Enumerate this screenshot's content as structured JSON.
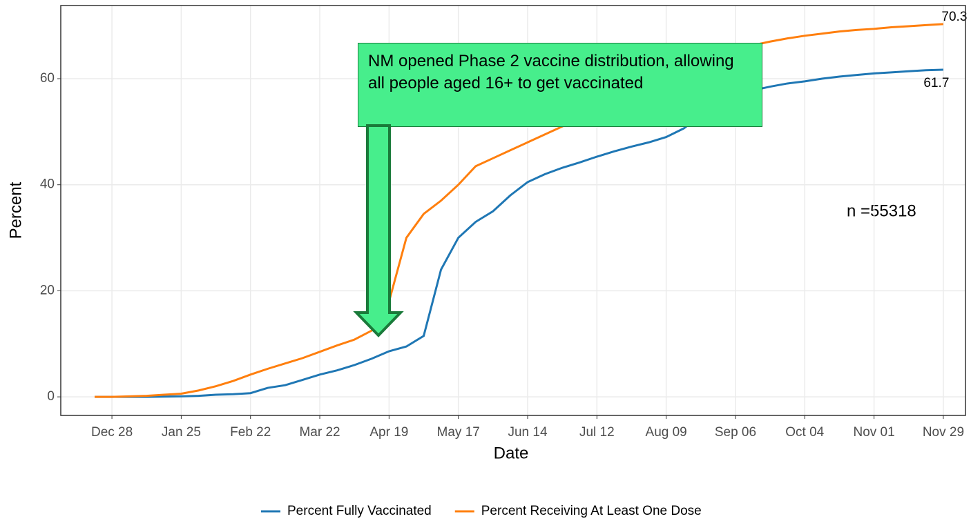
{
  "chart_data": {
    "type": "line",
    "x_label": "Date",
    "y_label": "Percent",
    "x": [
      null,
      "Dec 28",
      null,
      null,
      null,
      "Jan 25",
      null,
      null,
      null,
      "Feb 22",
      null,
      null,
      null,
      "Mar 22",
      null,
      null,
      null,
      "Apr 19",
      null,
      null,
      null,
      "May 17",
      null,
      null,
      null,
      "Jun 14",
      null,
      null,
      null,
      "Jul 12",
      null,
      null,
      null,
      "Aug 09",
      null,
      null,
      null,
      "Sep 06",
      null,
      null,
      null,
      "Oct 04",
      null,
      null,
      null,
      "Nov 01",
      null,
      null,
      null,
      "Nov 29"
    ],
    "series": [
      {
        "name": "Percent Fully Vaccinated",
        "color": "#1f77b4",
        "values": [
          0,
          0,
          0,
          0,
          0.05,
          0.1,
          0.2,
          0.4,
          0.5,
          0.7,
          1.7,
          2.2,
          3.2,
          4.2,
          5.0,
          6.0,
          7.2,
          8.6,
          9.5,
          11.5,
          24,
          30,
          33,
          35,
          38,
          40.5,
          42,
          43.2,
          44.2,
          45.3,
          46.3,
          47.2,
          48,
          49,
          50.6,
          53,
          55.5,
          57,
          57.8,
          58.5,
          59.1,
          59.5,
          60,
          60.4,
          60.7,
          61,
          61.2,
          61.4,
          61.6,
          61.7
        ]
      },
      {
        "name": "Percent Receiving At Least One Dose",
        "color": "#ff7f0e",
        "values": [
          0,
          0,
          0.1,
          0.2,
          0.4,
          0.6,
          1.2,
          2.0,
          3.0,
          4.2,
          5.3,
          6.3,
          7.3,
          8.5,
          9.7,
          10.8,
          12.5,
          18,
          30,
          34.5,
          37,
          40,
          43.5,
          45,
          46.5,
          48,
          49.5,
          51,
          52.5,
          54,
          55.5,
          57,
          58.5,
          60,
          61.5,
          63,
          64.5,
          65.5,
          66.3,
          67,
          67.6,
          68.1,
          68.5,
          68.9,
          69.2,
          69.4,
          69.7,
          69.9,
          70.1,
          70.3
        ]
      }
    ],
    "ylim": [
      -3.5,
      73.8
    ],
    "yticks": [
      0,
      20,
      40,
      60
    ],
    "grid": true,
    "annotations": [
      "NM opened Phase 2 vaccine distribution, allowing all people aged 16+ to get vaccinated",
      "n =55318"
    ],
    "legend": "bottom"
  }
}
